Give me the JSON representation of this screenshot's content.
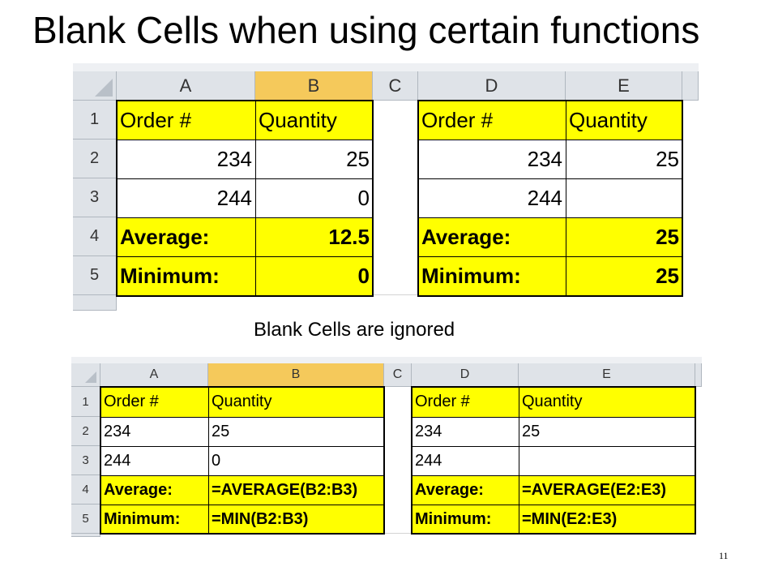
{
  "title": "Blank Cells when using certain functions",
  "caption": "Blank Cells are ignored",
  "slide_number": "11",
  "columns": [
    "A",
    "B",
    "C",
    "D",
    "E"
  ],
  "rows": [
    "1",
    "2",
    "3",
    "4",
    "5"
  ],
  "values_sheet": {
    "left": [
      [
        "Order #",
        "Quantity"
      ],
      [
        "234",
        "25"
      ],
      [
        "244",
        "0"
      ],
      [
        "Average:",
        "12.5"
      ],
      [
        "Minimum:",
        "0"
      ]
    ],
    "right": [
      [
        "Order #",
        "Quantity"
      ],
      [
        "234",
        "25"
      ],
      [
        "244",
        ""
      ],
      [
        "Average:",
        "25"
      ],
      [
        "Minimum:",
        "25"
      ]
    ]
  },
  "formula_sheet": {
    "left": [
      [
        "Order #",
        "Quantity"
      ],
      [
        "234",
        "25"
      ],
      [
        "244",
        "0"
      ],
      [
        "Average:",
        "=AVERAGE(B2:B3)"
      ],
      [
        "Minimum:",
        "=MIN(B2:B3)"
      ]
    ],
    "right": [
      [
        "Order #",
        "Quantity"
      ],
      [
        "234",
        "25"
      ],
      [
        "244",
        ""
      ],
      [
        "Average:",
        "=AVERAGE(E2:E3)"
      ],
      [
        "Minimum:",
        "=MIN(E2:E3)"
      ]
    ]
  },
  "colors": {
    "highlight": "#ffff00",
    "selected_header": "#f5c95b",
    "header": "#dfe3e8"
  }
}
